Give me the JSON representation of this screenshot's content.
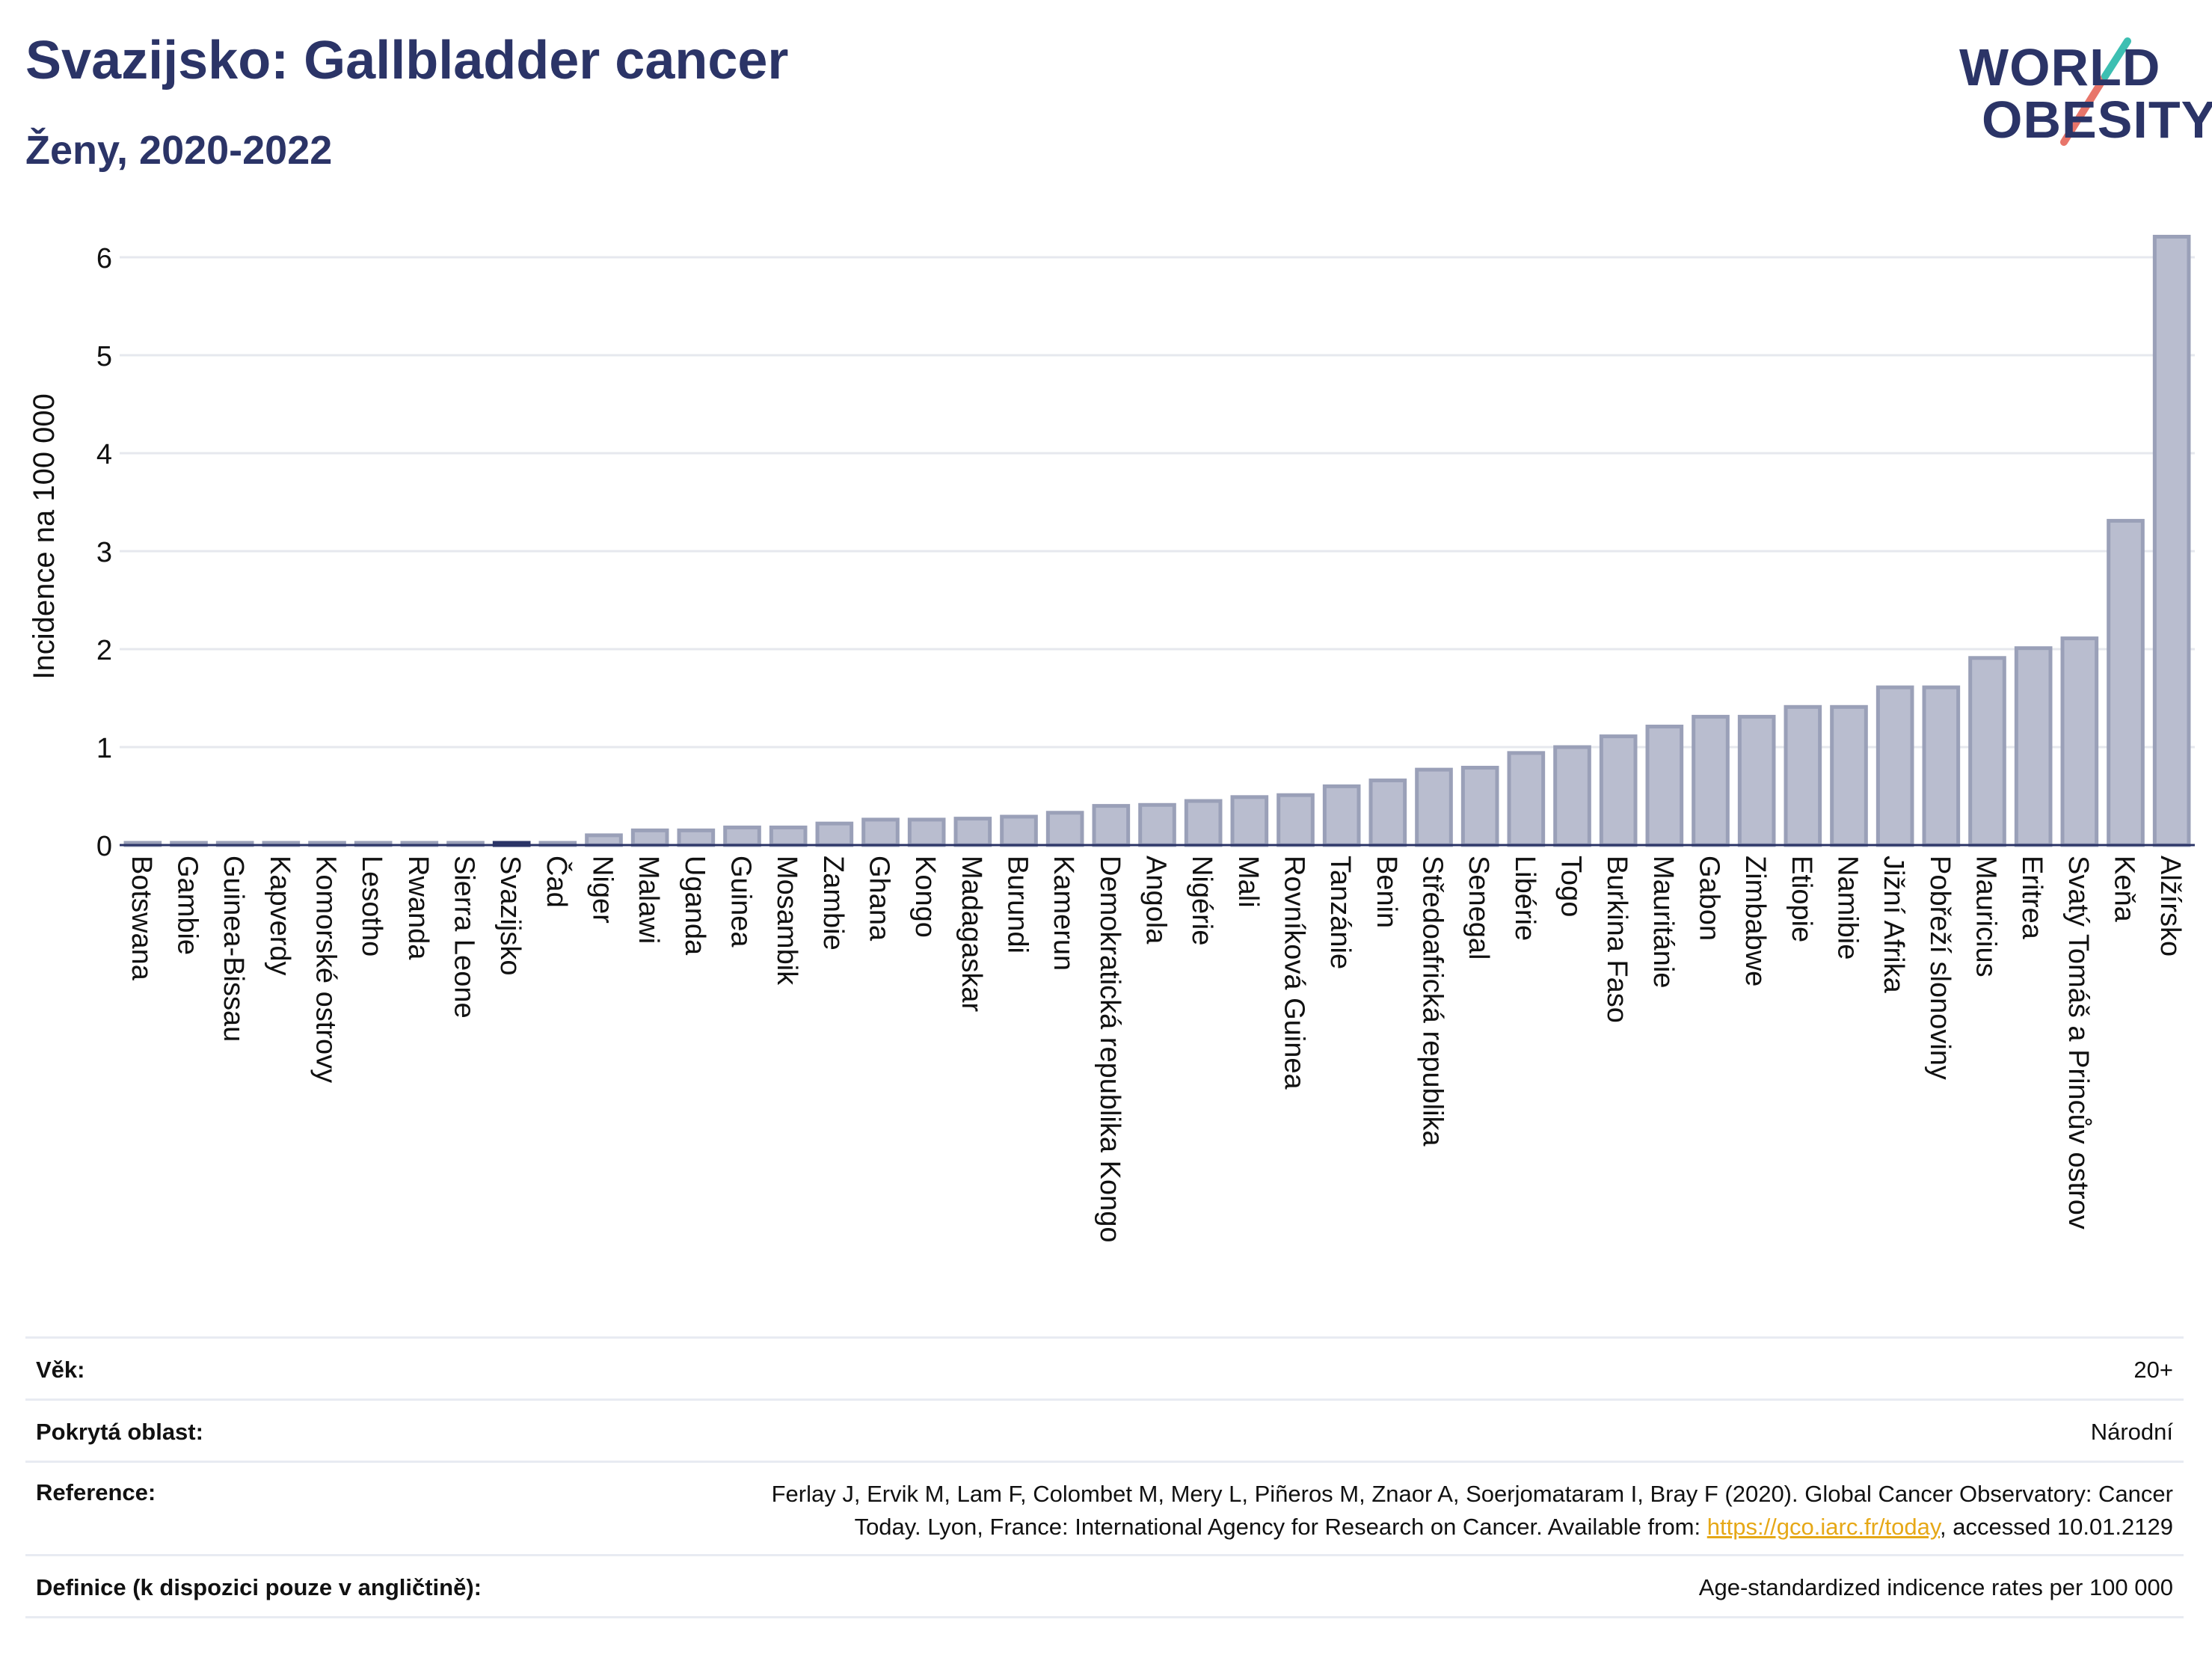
{
  "header": {
    "title": "Svazijsko: Gallbladder cancer",
    "subtitle": "Ženy, 2020-2022",
    "logo_line1": "WORLD",
    "logo_line2": "OBESITY"
  },
  "chart_data": {
    "type": "bar",
    "ylabel": "Incidence na 100 000",
    "xlabel": "",
    "ylim": [
      0,
      6.3
    ],
    "yticks": [
      0,
      1,
      2,
      3,
      4,
      5,
      6
    ],
    "grid": true,
    "highlight": "Svazijsko",
    "colors": {
      "bar": "#b9bdcf",
      "bar_edge": "#9aa0b8",
      "highlight": "#2b3467"
    },
    "categories": [
      "Botswana",
      "Gambie",
      "Guinea-Bissau",
      "Kapverdy",
      "Komorské ostrovy",
      "Lesotho",
      "Rwanda",
      "Sierra Leone",
      "Svazijsko",
      "Čad",
      "Niger",
      "Malawi",
      "Uganda",
      "Guinea",
      "Mosambik",
      "Zambie",
      "Ghana",
      "Kongo",
      "Madagaskar",
      "Burundi",
      "Kamerun",
      "Demokratická republika Kongo",
      "Angola",
      "Nigérie",
      "Mali",
      "Rovníková Guinea",
      "Tanzánie",
      "Benin",
      "Středoafrická republika",
      "Senegal",
      "Libérie",
      "Togo",
      "Burkina Faso",
      "Mauritánie",
      "Gabon",
      "Zimbabwe",
      "Etiopie",
      "Namibie",
      "Jižní Afrika",
      "Pobřeží slonoviny",
      "Mauricius",
      "Eritrea",
      "Svatý Tomáš a Princův ostrov",
      "Keňa",
      "Alžírsko"
    ],
    "values": [
      0.02,
      0.02,
      0.02,
      0.02,
      0.02,
      0.02,
      0.02,
      0.02,
      0.02,
      0.02,
      0.1,
      0.15,
      0.15,
      0.18,
      0.18,
      0.22,
      0.26,
      0.26,
      0.27,
      0.29,
      0.33,
      0.4,
      0.41,
      0.45,
      0.49,
      0.51,
      0.6,
      0.66,
      0.77,
      0.79,
      0.94,
      1.0,
      1.11,
      1.21,
      1.31,
      1.31,
      1.41,
      1.41,
      1.61,
      1.61,
      1.91,
      2.01,
      2.11,
      3.31,
      6.21
    ]
  },
  "meta": [
    {
      "key": "Věk:",
      "value": "20+"
    },
    {
      "key": "Pokrytá oblast:",
      "value": "Národní"
    },
    {
      "key": "Reference:",
      "value_line1": "Ferlay J, Ervik M, Lam F, Colombet M, Mery L, Piñeros M, Znaor A, Soerjomataram I, Bray F (2020). Global Cancer Observatory: Cancer",
      "value_line2_pre": "Today. Lyon, France: International Agency for Research on Cancer. Available from: ",
      "link": "https://gco.iarc.fr/today",
      "value_line2_post": ", accessed 10.01.2129"
    },
    {
      "key": "Definice (k dispozici pouze v angličtině):",
      "value": "Age-standardized indicence rates per 100 000"
    }
  ]
}
